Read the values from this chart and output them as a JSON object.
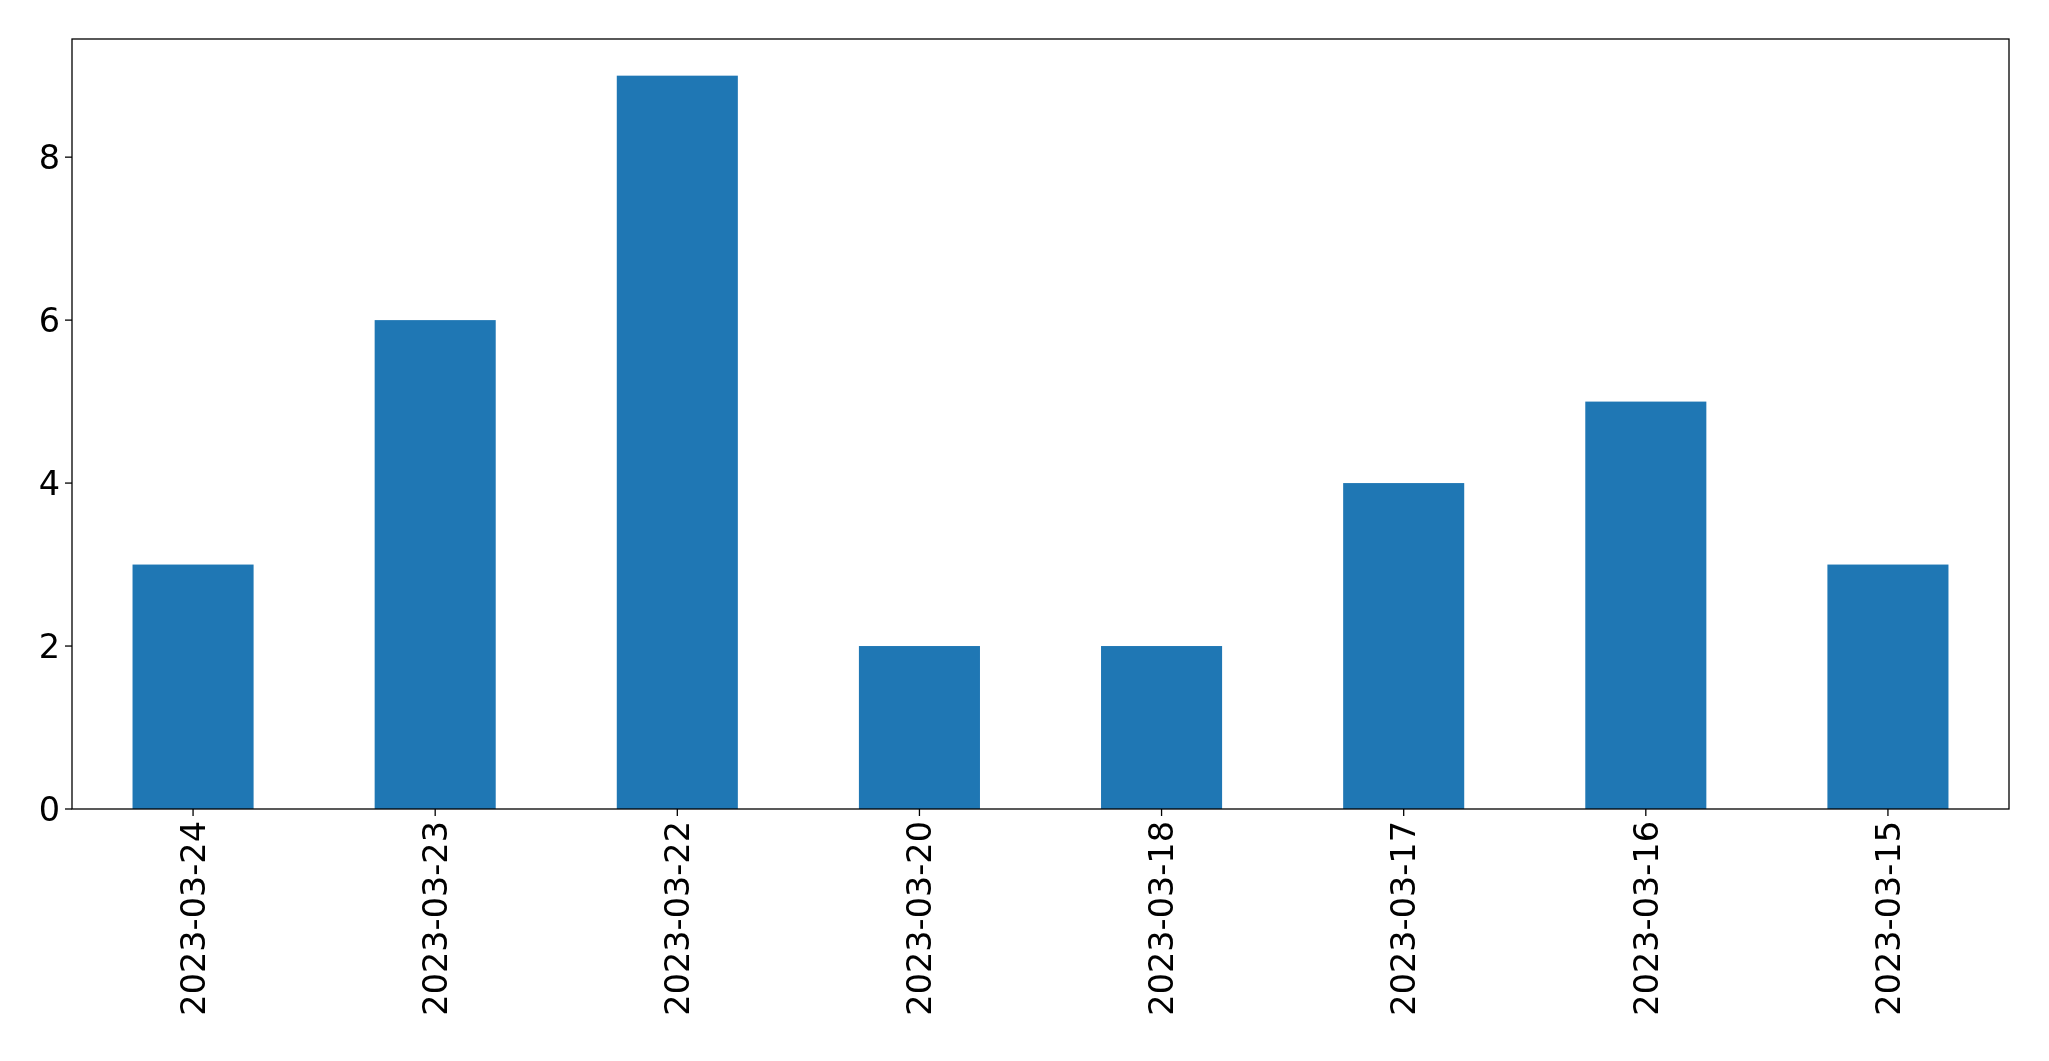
{
  "chart_data": {
    "type": "bar",
    "categories": [
      "2023-03-24",
      "2023-03-23",
      "2023-03-22",
      "2023-03-20",
      "2023-03-18",
      "2023-03-17",
      "2023-03-16",
      "2023-03-15"
    ],
    "values": [
      3,
      6,
      9,
      2,
      2,
      4,
      5,
      3
    ],
    "color": "#1f77b4",
    "ylim": [
      0,
      9.45
    ],
    "yticks": [
      0,
      2,
      4,
      6,
      8
    ]
  }
}
